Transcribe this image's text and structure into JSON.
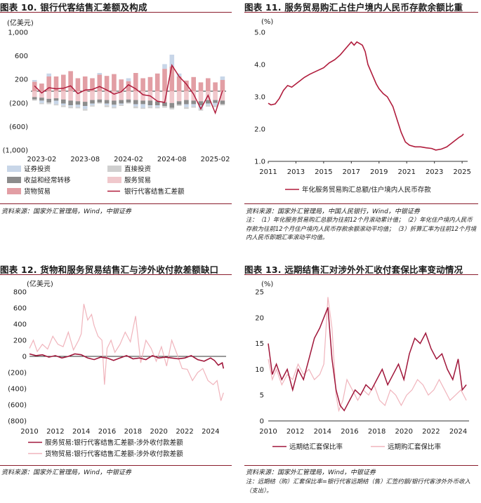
{
  "charts": [
    {
      "title": "图表 10. 银行代客结售汇差额及构成",
      "source": "资料来源：国家外汇管理局，Wind，中银证券",
      "note": ""
    },
    {
      "title": "图表 11. 服务贸易购汇占住户境内人民币存款余额比重",
      "source": "资料来源：国家外汇管理局，中国人民银行，Wind，中银证券",
      "note": "注：（1）年化服务贸易购汇总额为往前12个月滚动累计值；（2）年化住户境内人民币存款为往前12个月住户境内人民币存款余额滚动平均值；（3）折算汇率为往前12个月境内人民币即期汇率滚动平均值。"
    },
    {
      "title": "图表 12. 货物和服务贸易结售汇与涉外收付款差额缺口",
      "source": "资料来源：国家外汇管理局，Wind，中银证券",
      "note": ""
    },
    {
      "title": "图表 13. 远期结售汇对涉外外汇收付套保比率变动情况",
      "source": "资料来源：国家外汇管理局，Wind，中银证券",
      "note": "注：远期结（购）汇套保比率=银行代客远期结（售）汇签约额/银行代客涉外外币收入（支出）。"
    }
  ],
  "chart_data": [
    {
      "type": "bar",
      "unit": "(亿美元)",
      "x_ticks": [
        "2023-02",
        "2023-08",
        "2024-02",
        "2024-08",
        "2025-02"
      ],
      "y_ticks": [
        "1,000",
        "600",
        "200",
        "(200)",
        "(600)",
        "(1,000)"
      ],
      "ylim": [
        -1000,
        1000
      ],
      "months": [
        "2023-01",
        "2023-02",
        "2023-03",
        "2023-04",
        "2023-05",
        "2023-06",
        "2023-07",
        "2023-08",
        "2023-09",
        "2023-10",
        "2023-11",
        "2023-12",
        "2024-01",
        "2024-02",
        "2024-03",
        "2024-04",
        "2024-05",
        "2024-06",
        "2024-07",
        "2024-08",
        "2024-09",
        "2024-10",
        "2024-11",
        "2024-12",
        "2025-01",
        "2025-02",
        "2025-03"
      ],
      "legend": [
        {
          "name": "证券投资",
          "color": "#c8d6e8"
        },
        {
          "name": "直接投资",
          "color": "#cfcfcf"
        },
        {
          "name": "收益和经常转移",
          "color": "#8c8c8c"
        },
        {
          "name": "服务贸易",
          "color": "#f0c8cc"
        },
        {
          "name": "货物贸易",
          "color": "#e29ea4"
        },
        {
          "name": "银行代客结售汇差额",
          "color": "#b01c3c"
        }
      ],
      "series": [
        {
          "name": "货物贸易",
          "values": [
            160,
            130,
            250,
            250,
            280,
            340,
            220,
            250,
            220,
            280,
            260,
            290,
            200,
            170,
            310,
            220,
            240,
            300,
            380,
            420,
            250,
            180,
            240,
            150,
            220,
            150,
            190
          ]
        },
        {
          "name": "服务贸易",
          "values": [
            -100,
            -110,
            -130,
            -120,
            -140,
            -160,
            -170,
            -180,
            -150,
            -140,
            -150,
            -160,
            -150,
            -140,
            -150,
            -160,
            -160,
            -170,
            -190,
            -200,
            -170,
            -150,
            -160,
            -170,
            -150,
            -150,
            -160
          ]
        },
        {
          "name": "收益和经常转移",
          "values": [
            -40,
            -50,
            -60,
            -40,
            -70,
            -80,
            -60,
            -70,
            -60,
            -50,
            -60,
            -70,
            -60,
            -50,
            -70,
            -60,
            -80,
            -70,
            -60,
            -80,
            -60,
            -70,
            -60,
            -70,
            -60,
            -50,
            -60
          ]
        },
        {
          "name": "证券投资",
          "values": [
            30,
            -40,
            50,
            -60,
            -30,
            -20,
            -40,
            -50,
            -30,
            30,
            -30,
            -40,
            -20,
            50,
            -40,
            -60,
            -20,
            -30,
            80,
            200,
            50,
            -50,
            -40,
            -60,
            -30,
            -40,
            60
          ]
        },
        {
          "name": "直接投资",
          "values": [
            -20,
            -20,
            -30,
            -20,
            -30,
            -30,
            -20,
            -30,
            -20,
            -20,
            -30,
            -20,
            -20,
            -20,
            -30,
            -20,
            -30,
            -20,
            -30,
            -30,
            -20,
            -30,
            -20,
            -30,
            -20,
            -30,
            -20
          ]
        },
        {
          "name": "银行代客结售汇差额",
          "values": [
            90,
            -30,
            60,
            40,
            50,
            90,
            -40,
            20,
            30,
            80,
            20,
            -50,
            -10,
            110,
            40,
            -60,
            -80,
            -170,
            -190,
            440,
            250,
            120,
            -50,
            -300,
            -70,
            -370,
            10
          ]
        }
      ]
    },
    {
      "type": "line",
      "unit": "(%)",
      "x_ticks": [
        "2011",
        "2013",
        "2015",
        "2017",
        "2019",
        "2021",
        "2023",
        "2025"
      ],
      "y_ticks": [
        "5.0",
        "4.0",
        "3.0",
        "2.0",
        "1.0"
      ],
      "xlim": [
        2011,
        2025.4
      ],
      "ylim": [
        1.0,
        5.0
      ],
      "legend": [
        {
          "name": "年化服务贸易购汇总额/住户境内人民币存款",
          "color": "#b01c3c"
        }
      ],
      "series": [
        {
          "name": "年化服务贸易购汇总额/住户境内人民币存款",
          "x": [
            2011,
            2011.2,
            2011.5,
            2011.8,
            2012.1,
            2012.4,
            2012.7,
            2013,
            2013.3,
            2013.6,
            2014,
            2014.5,
            2015,
            2015.4,
            2015.8,
            2016.2,
            2016.6,
            2017,
            2017.2,
            2017.4,
            2017.6,
            2017.8,
            2018,
            2018.2,
            2018.5,
            2018.8,
            2019,
            2019.3,
            2019.6,
            2020,
            2020.3,
            2020.6,
            2020.9,
            2021.2,
            2021.6,
            2022,
            2022.4,
            2022.8,
            2023.1,
            2023.5,
            2023.9,
            2024.2,
            2024.5,
            2024.8,
            2025,
            2025.1
          ],
          "y": [
            2.8,
            2.75,
            2.78,
            2.95,
            3.2,
            3.35,
            3.3,
            3.4,
            3.5,
            3.6,
            3.7,
            3.8,
            3.9,
            4.05,
            4.15,
            4.3,
            4.5,
            4.7,
            4.6,
            4.7,
            4.65,
            4.6,
            4.4,
            4.0,
            3.7,
            3.4,
            3.25,
            3.1,
            3.0,
            2.7,
            2.3,
            1.9,
            1.6,
            1.5,
            1.45,
            1.45,
            1.42,
            1.4,
            1.35,
            1.38,
            1.45,
            1.55,
            1.65,
            1.75,
            1.8,
            1.85
          ]
        }
      ]
    },
    {
      "type": "line",
      "unit": "(亿美元)",
      "x_ticks": [
        "2010",
        "2012",
        "2014",
        "2016",
        "2018",
        "2020",
        "2022",
        "2024"
      ],
      "y_ticks": [
        "800",
        "600",
        "400",
        "200",
        "0",
        "(200)",
        "(400)",
        "(600)",
        "(800)"
      ],
      "xlim": [
        2010,
        2025.2
      ],
      "ylim": [
        -800,
        800
      ],
      "legend": [
        {
          "name": "服务贸易:银行代客结售汇差额-涉外收付款差额",
          "color": "#a0163a"
        },
        {
          "name": "货物贸易:银行代客结售汇差额-涉外收付款差额",
          "color": "#f0b4bc"
        }
      ],
      "series": [
        {
          "name": "服务贸易:银行代客结售汇差额-涉外收付款差额",
          "x": [
            2010,
            2010.5,
            2011,
            2011.5,
            2012,
            2012.5,
            2013,
            2013.5,
            2014,
            2014.5,
            2015,
            2015.5,
            2016,
            2016.5,
            2017,
            2017.5,
            2018,
            2018.5,
            2019,
            2019.5,
            2020,
            2020.5,
            2021,
            2021.5,
            2022,
            2022.5,
            2023,
            2023.5,
            2024,
            2024.3,
            2024.6,
            2024.9,
            2025
          ],
          "y": [
            30,
            10,
            20,
            -10,
            10,
            -20,
            0,
            30,
            20,
            -20,
            -40,
            -10,
            -20,
            -50,
            -20,
            10,
            -30,
            -20,
            -40,
            10,
            -20,
            -10,
            -20,
            -30,
            -20,
            10,
            -40,
            -60,
            -20,
            -50,
            -110,
            -80,
            -150
          ]
        },
        {
          "name": "货物贸易:银行代客结售汇差额-涉外收付款差额",
          "x": [
            2010,
            2010.3,
            2010.6,
            2011,
            2011.4,
            2011.8,
            2012.2,
            2012.6,
            2013,
            2013.4,
            2013.8,
            2014,
            2014.2,
            2014.5,
            2014.8,
            2015,
            2015.3,
            2015.6,
            2015.8,
            2016,
            2016.3,
            2016.6,
            2017,
            2017.4,
            2017.8,
            2018.2,
            2018.6,
            2019,
            2019.4,
            2019.8,
            2020.2,
            2020.6,
            2021,
            2021.4,
            2021.8,
            2022.2,
            2022.6,
            2023,
            2023.4,
            2023.8,
            2024.2,
            2024.5,
            2024.8,
            2025
          ],
          "y": [
            100,
            200,
            60,
            150,
            90,
            250,
            150,
            120,
            300,
            80,
            200,
            280,
            650,
            450,
            520,
            380,
            250,
            200,
            -350,
            100,
            200,
            50,
            150,
            300,
            180,
            500,
            -80,
            200,
            100,
            -60,
            120,
            -120,
            200,
            30,
            -150,
            -160,
            -300,
            -200,
            -150,
            -300,
            -350,
            -300,
            -550,
            -450
          ]
        }
      ]
    },
    {
      "type": "line",
      "unit": "(%)",
      "x_ticks": [
        "2010",
        "2012",
        "2014",
        "2016",
        "2018",
        "2020",
        "2022",
        "2024"
      ],
      "y_ticks": [
        "25",
        "20",
        "15",
        "10",
        "5",
        "0"
      ],
      "xlim": [
        2010,
        2024.8
      ],
      "ylim": [
        0,
        25
      ],
      "legend": [
        {
          "name": "远期结汇套保比率",
          "color": "#a0163a"
        },
        {
          "name": "远期购汇套保比率",
          "color": "#f0b4bc"
        }
      ],
      "series": [
        {
          "name": "远期结汇套保比率",
          "x": [
            2010,
            2010.3,
            2010.6,
            2011,
            2011.4,
            2011.8,
            2012.2,
            2012.6,
            2013,
            2013.4,
            2013.8,
            2014.1,
            2014.4,
            2014.7,
            2015,
            2015.3,
            2015.6,
            2016,
            2016.4,
            2016.8,
            2017.2,
            2017.6,
            2018,
            2018.4,
            2018.8,
            2019.2,
            2019.6,
            2020,
            2020.4,
            2020.8,
            2021.2,
            2021.6,
            2022,
            2022.4,
            2022.8,
            2023.2,
            2023.6,
            2024,
            2024.3,
            2024.6
          ],
          "y": [
            15,
            9,
            11,
            8,
            10,
            6,
            10,
            8,
            12,
            16,
            18,
            20,
            22,
            12,
            6,
            3,
            2,
            4,
            6,
            5,
            7,
            6,
            8,
            10,
            7,
            9,
            11,
            8,
            13,
            16,
            15,
            17,
            14,
            12,
            13,
            10,
            8,
            12,
            6,
            7
          ]
        },
        {
          "name": "远期购汇套保比率",
          "x": [
            2010,
            2010.3,
            2010.6,
            2011,
            2011.4,
            2011.8,
            2012.2,
            2012.6,
            2013,
            2013.4,
            2013.8,
            2014.1,
            2014.4,
            2014.7,
            2015,
            2015.2,
            2015.5,
            2015.8,
            2016.2,
            2016.6,
            2017,
            2017.4,
            2017.8,
            2018.2,
            2018.6,
            2019,
            2019.4,
            2019.8,
            2020.2,
            2020.6,
            2021,
            2021.4,
            2021.8,
            2022.2,
            2022.6,
            2023,
            2023.4,
            2023.8,
            2024.2,
            2024.6
          ],
          "y": [
            12,
            8,
            10,
            7,
            9,
            8,
            11,
            9,
            10,
            8,
            9,
            11,
            24,
            18,
            5,
            2,
            4,
            8,
            6,
            4,
            6,
            5,
            7,
            4,
            3,
            6,
            5,
            3,
            5,
            6,
            8,
            7,
            5,
            6,
            8,
            6,
            4,
            5,
            6,
            4
          ]
        }
      ]
    }
  ]
}
